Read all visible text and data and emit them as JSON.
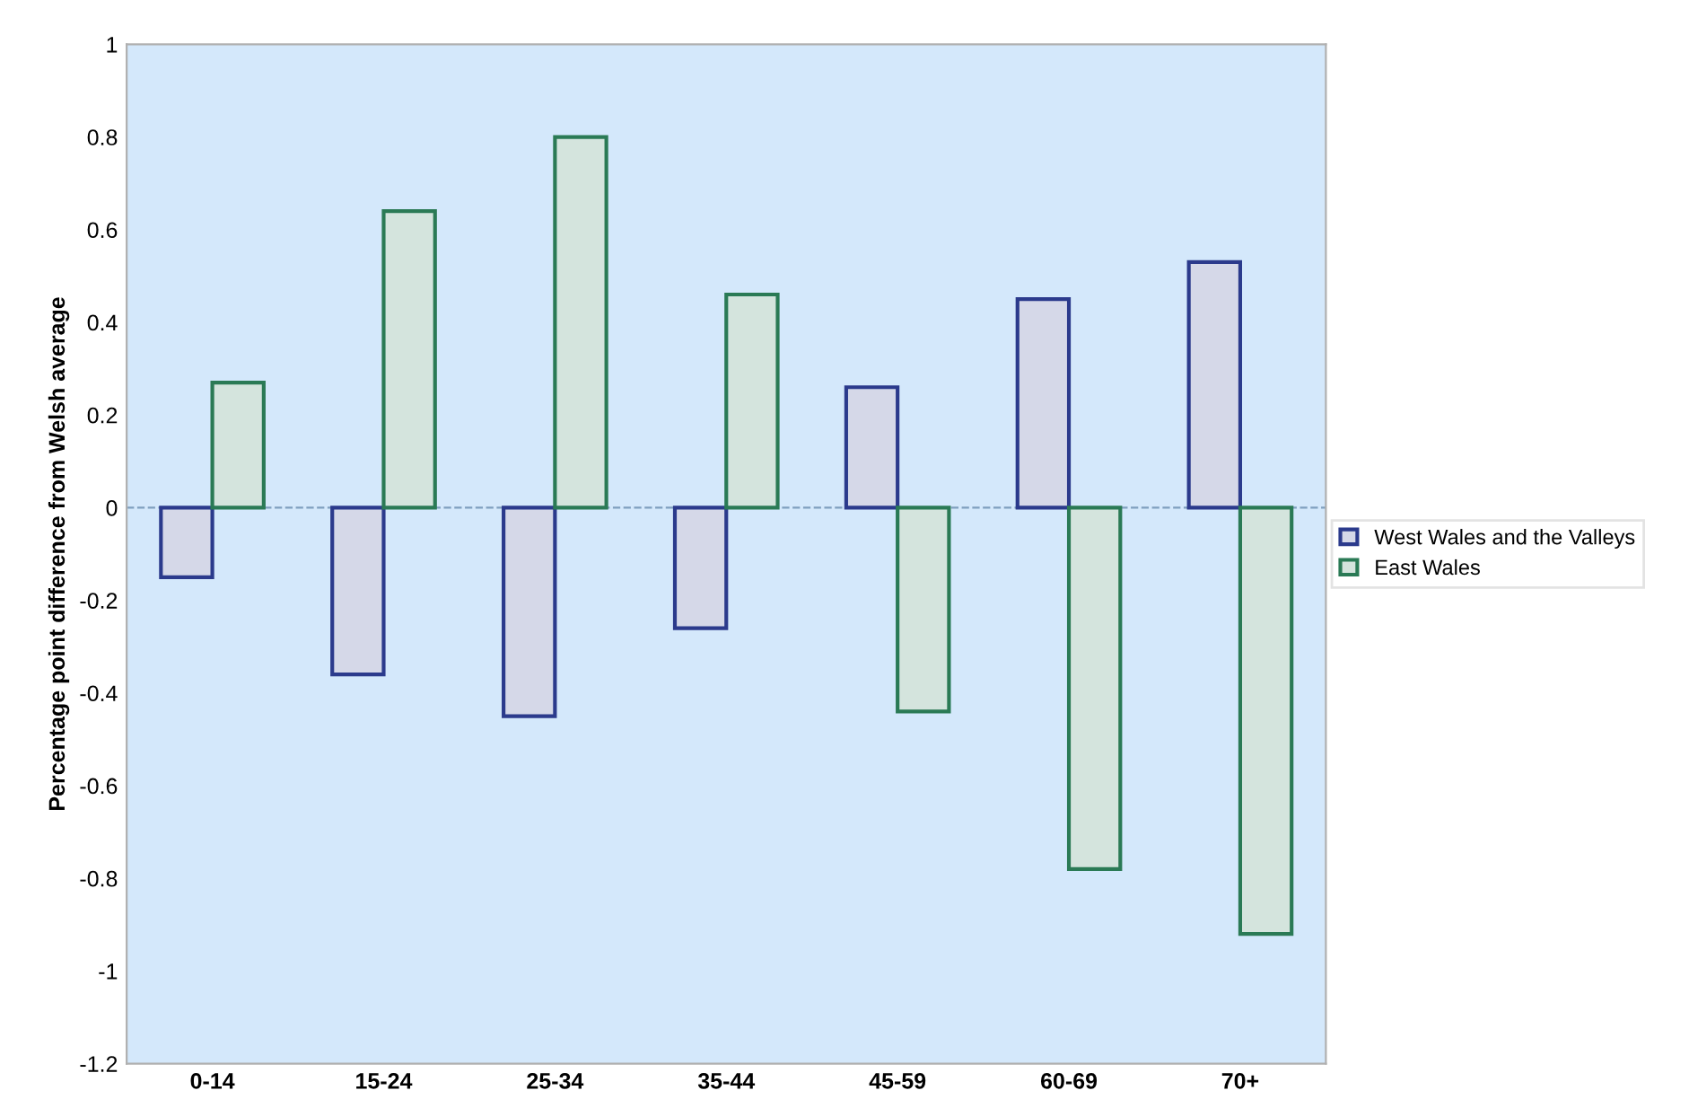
{
  "chart_data": {
    "type": "bar",
    "ylabel": "Percentage point difference from Welsh average",
    "categories": [
      "0-14",
      "15-24",
      "25-34",
      "35-44",
      "45-59",
      "60-69",
      "70+"
    ],
    "series": [
      {
        "name": "West Wales and the Valleys",
        "color": "#2b3a8c",
        "values": [
          -0.15,
          -0.36,
          -0.45,
          -0.26,
          0.26,
          0.45,
          0.53
        ]
      },
      {
        "name": "East Wales",
        "color": "#2a7a55",
        "values": [
          0.27,
          0.64,
          0.8,
          0.46,
          -0.44,
          -0.78,
          -0.92
        ]
      }
    ],
    "ylim": [
      -1.2,
      1
    ],
    "yticks": [
      -1.2,
      -1,
      -0.8,
      -0.6,
      -0.4,
      -0.2,
      0,
      0.2,
      0.4,
      0.6,
      0.8,
      1
    ],
    "ref_lines": [
      {
        "axis": "y",
        "value": 0,
        "color": "#7f9fbf",
        "line_style": "dashed"
      }
    ],
    "grid": false,
    "legend": "right"
  }
}
